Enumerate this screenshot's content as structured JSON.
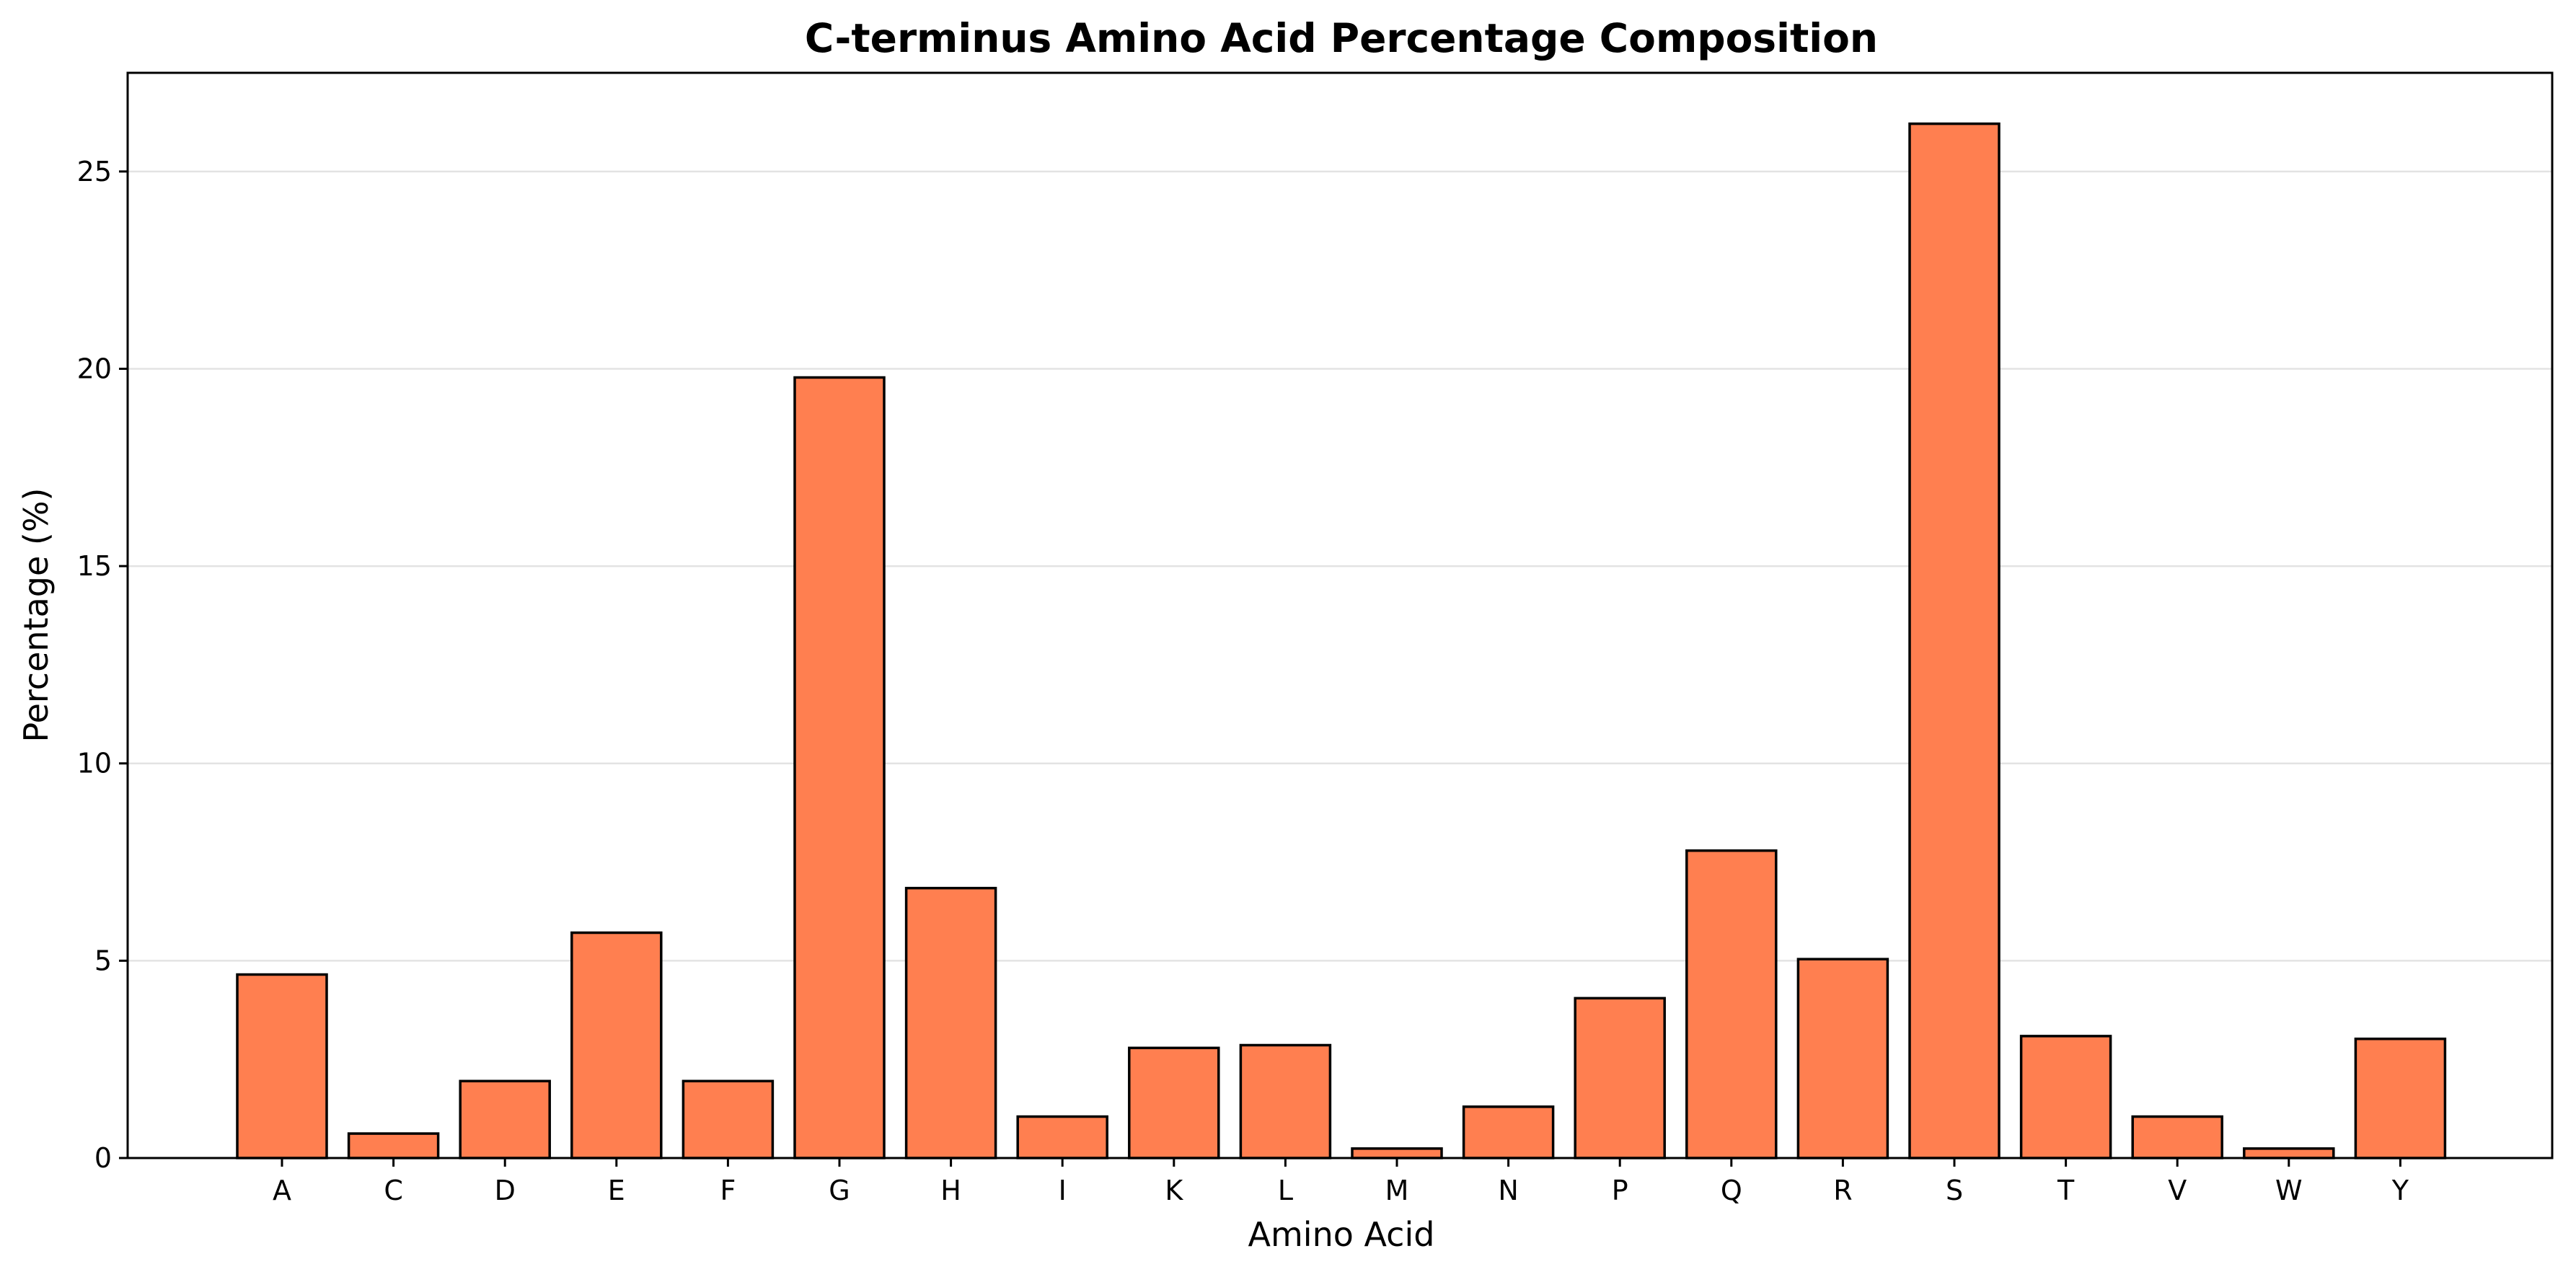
{
  "chart_data": {
    "type": "bar",
    "title": "C-terminus Amino Acid Percentage Composition",
    "xlabel": "Amino Acid",
    "ylabel": "Percentage (%)",
    "categories": [
      "A",
      "C",
      "D",
      "E",
      "F",
      "G",
      "H",
      "I",
      "K",
      "L",
      "M",
      "N",
      "P",
      "Q",
      "R",
      "S",
      "T",
      "V",
      "W",
      "Y"
    ],
    "values": [
      4.65,
      0.62,
      1.95,
      5.71,
      1.95,
      19.78,
      6.84,
      1.05,
      2.79,
      2.86,
      0.24,
      1.3,
      4.05,
      7.79,
      5.04,
      26.21,
      3.09,
      1.05,
      0.24,
      3.02
    ],
    "ylim": [
      0,
      27.5
    ],
    "yticks": [
      0,
      5,
      10,
      15,
      20,
      25
    ],
    "grid": "y",
    "legend": "none",
    "colors": {
      "bar_fill": "#ff7f50",
      "bar_edge": "#000000",
      "grid": "#e3e3e3"
    }
  }
}
